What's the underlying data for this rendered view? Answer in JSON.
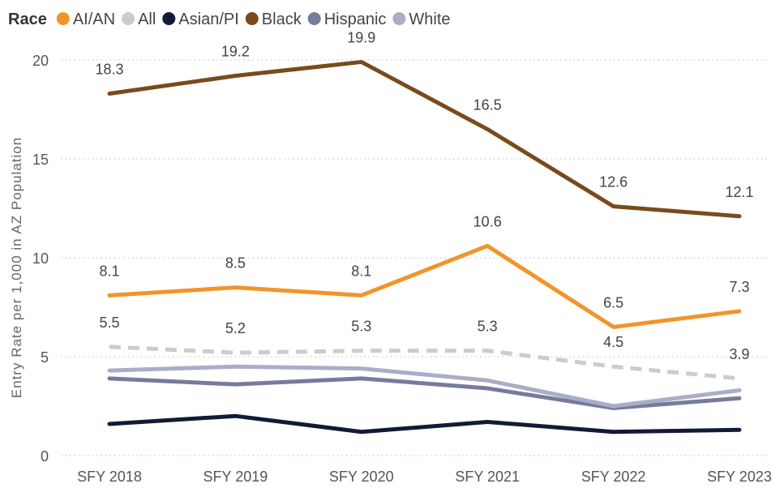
{
  "chart_data": {
    "type": "line",
    "title": "",
    "xlabel": "",
    "ylabel": "Entry Rate per 1,000 in AZ Population",
    "legend": {
      "title": "Race",
      "placement": "top-left",
      "entries": [
        "AI/AN",
        "All",
        "Asian/PI",
        "Black",
        "Hispanic",
        "White"
      ]
    },
    "categories": [
      "SFY 2018",
      "SFY 2019",
      "SFY 2020",
      "SFY 2021",
      "SFY 2022",
      "SFY 2023"
    ],
    "ylim": [
      0,
      20
    ],
    "yticks": [
      0,
      5,
      10,
      15,
      20
    ],
    "grid": "horizontal dotted",
    "series": [
      {
        "name": "Black",
        "color": "#7a4a1e",
        "dashed": false,
        "values": [
          18.3,
          19.2,
          19.9,
          16.5,
          12.6,
          12.1
        ],
        "labels": [
          "18.3",
          "19.2",
          "19.9",
          "16.5",
          "12.6",
          "12.1"
        ]
      },
      {
        "name": "AI/AN",
        "color": "#f0952c",
        "dashed": false,
        "values": [
          8.1,
          8.5,
          8.1,
          10.6,
          6.5,
          7.3
        ],
        "labels": [
          "8.1",
          "8.5",
          "8.1",
          "10.6",
          "6.5",
          "7.3"
        ]
      },
      {
        "name": "All",
        "color": "#cccccc",
        "dashed": true,
        "values": [
          5.5,
          5.2,
          5.3,
          5.3,
          4.5,
          3.9
        ],
        "labels": [
          "5.5",
          "5.2",
          "5.3",
          "5.3",
          "4.5",
          "3.9"
        ]
      },
      {
        "name": "White",
        "color": "#a9aec8",
        "dashed": false,
        "values": [
          4.3,
          4.5,
          4.4,
          3.8,
          2.5,
          3.3
        ],
        "labels": []
      },
      {
        "name": "Hispanic",
        "color": "#777b9c",
        "dashed": false,
        "values": [
          3.9,
          3.6,
          3.9,
          3.4,
          2.4,
          2.9
        ],
        "labels": []
      },
      {
        "name": "Asian/PI",
        "color": "#111b35",
        "dashed": false,
        "values": [
          1.6,
          2.0,
          1.2,
          1.7,
          1.2,
          1.3
        ],
        "labels": []
      }
    ]
  }
}
